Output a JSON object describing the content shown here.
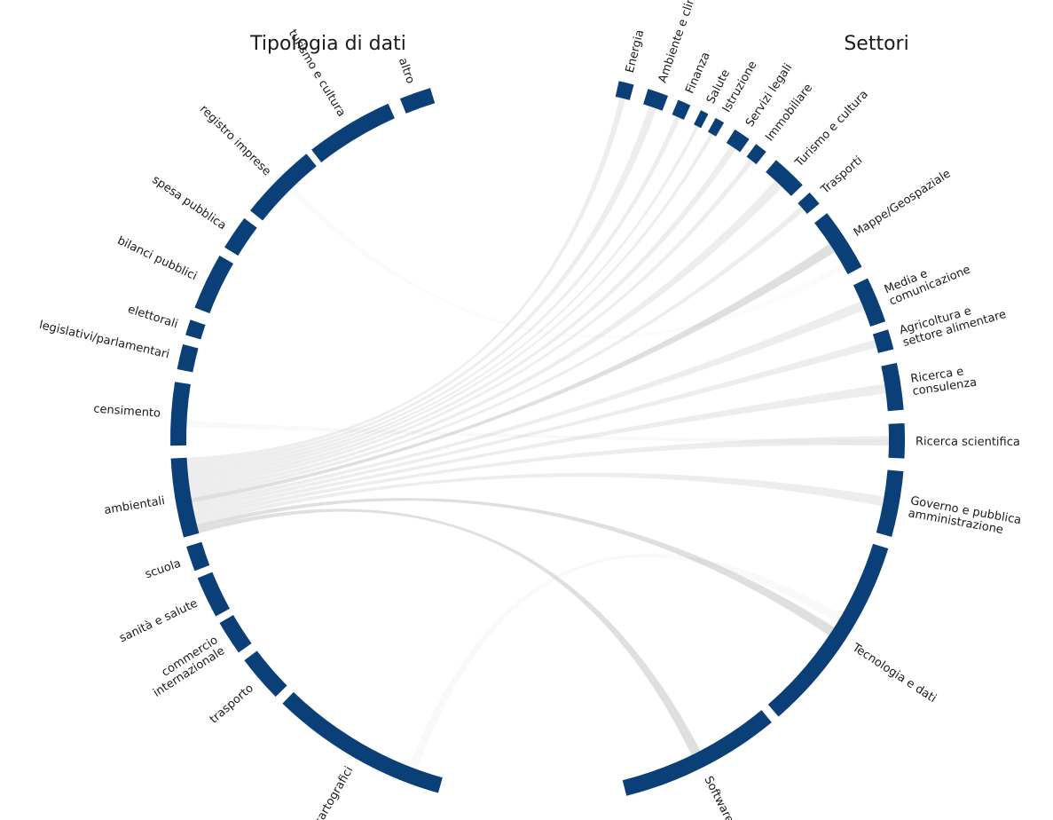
{
  "titles": {
    "left": "Tipologia di dati",
    "right": "Settori"
  },
  "left_groups": [
    {
      "label": [
        "cartografici"
      ]
    },
    {
      "label": [
        "trasporto"
      ]
    },
    {
      "label": [
        "commercio",
        "internazionale"
      ]
    },
    {
      "label": [
        "sanità e salute"
      ]
    },
    {
      "label": [
        "scuola"
      ]
    },
    {
      "label": [
        "ambientali"
      ]
    },
    {
      "label": [
        "censimento"
      ]
    },
    {
      "label": [
        "legislativi/parlamentari"
      ]
    },
    {
      "label": [
        "elettorali"
      ]
    },
    {
      "label": [
        "bilanci pubblici"
      ]
    },
    {
      "label": [
        "spesa pubblica"
      ]
    },
    {
      "label": [
        "registro imprese"
      ]
    },
    {
      "label": [
        "turismo e cultura"
      ]
    },
    {
      "label": [
        "altro"
      ]
    }
  ],
  "right_groups": [
    {
      "label": [
        "Energia"
      ]
    },
    {
      "label": [
        "Ambiente e clima"
      ]
    },
    {
      "label": [
        "Finanza"
      ]
    },
    {
      "label": [
        "Salute"
      ]
    },
    {
      "label": [
        "Istruzione"
      ]
    },
    {
      "label": [
        "Servizi legali"
      ]
    },
    {
      "label": [
        "Immobiliare"
      ]
    },
    {
      "label": [
        "Turismo e cultura"
      ]
    },
    {
      "label": [
        "Trasporti"
      ]
    },
    {
      "label": [
        "Mappe/Geospaziale"
      ]
    },
    {
      "label": [
        "Media e",
        "comunicazione"
      ]
    },
    {
      "label": [
        "Agricoltura e",
        "settore alimentare"
      ]
    },
    {
      "label": [
        "Ricerca e",
        "consulenza"
      ]
    },
    {
      "label": [
        "Ricerca scientifica"
      ]
    },
    {
      "label": [
        "Governo e pubblica",
        "amministrazione"
      ]
    },
    {
      "label": [
        "Tecnologia e dati"
      ]
    },
    {
      "label": [
        "Software"
      ]
    }
  ]
}
